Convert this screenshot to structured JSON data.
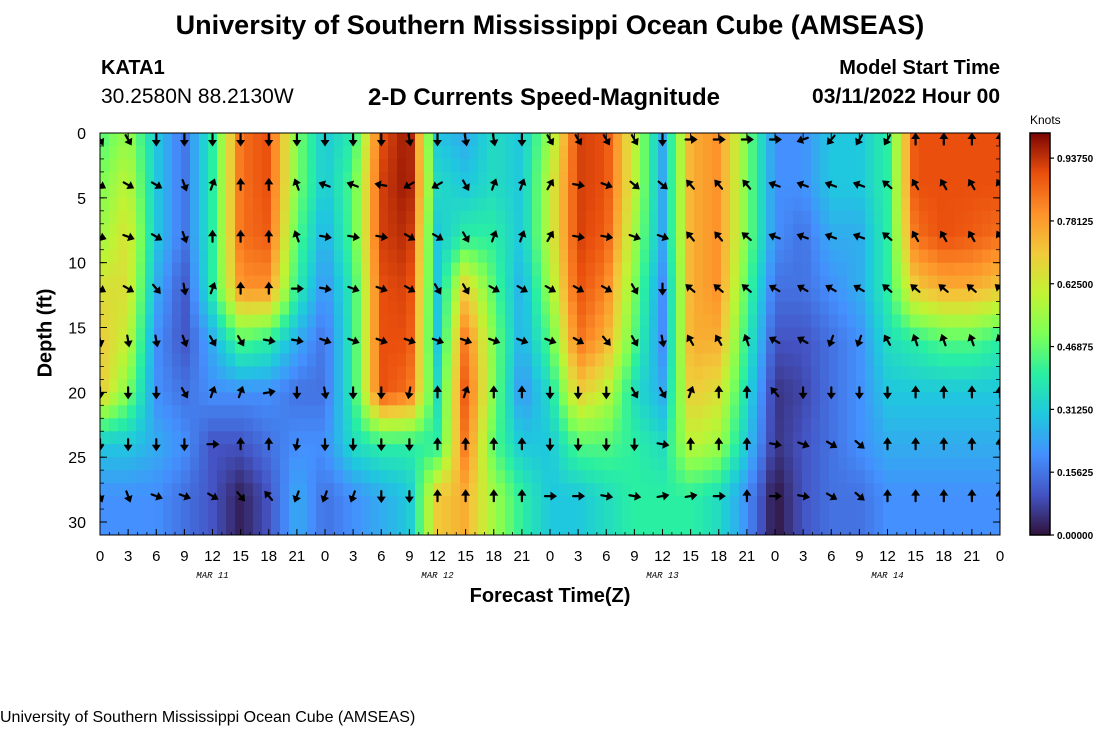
{
  "header": {
    "title": "University of Southern Mississippi Ocean Cube (AMSEAS)",
    "station_name": "KATA1",
    "station_coords": "30.2580N  88.2130W",
    "plot_title": "2-D Currents Speed-Magnitude",
    "model_start_label": "Model Start Time",
    "model_start_value": "03/11/2022 Hour 00"
  },
  "footer": {
    "title_repeat": "University of Southern Mississippi Ocean Cube (AMSEAS)"
  },
  "chart_data": {
    "type": "heatmap",
    "title": "2-D Currents Speed-Magnitude",
    "xlabel": "Forecast Time(Z)",
    "ylabel": "Depth (ft)",
    "x_ticks": [
      "0",
      "3",
      "6",
      "9",
      "12",
      "15",
      "18",
      "21",
      "0",
      "3",
      "6",
      "9",
      "12",
      "15",
      "18",
      "21",
      "0",
      "3",
      "6",
      "9",
      "12",
      "15",
      "18",
      "21",
      "0",
      "3",
      "6",
      "9",
      "12",
      "15",
      "18",
      "21",
      "0"
    ],
    "x_range_hours": [
      0,
      96
    ],
    "date_labels": [
      {
        "label": "MAR 11",
        "hour": 12
      },
      {
        "label": "MAR 12",
        "hour": 36
      },
      {
        "label": "MAR 13",
        "hour": 60
      },
      {
        "label": "MAR 14",
        "hour": 84
      }
    ],
    "y_ticks": [
      "0",
      "5",
      "10",
      "15",
      "20",
      "25",
      "30"
    ],
    "y_range_ft": [
      0,
      31
    ],
    "colorbar": {
      "unit": "Knots",
      "range": [
        0,
        1
      ],
      "ticks": [
        {
          "value": 0.0,
          "label": "0.00000"
        },
        {
          "value": 0.15625,
          "label": "0.15625"
        },
        {
          "value": 0.3125,
          "label": "0.31250"
        },
        {
          "value": 0.46875,
          "label": "0.46875"
        },
        {
          "value": 0.625,
          "label": "0.62500"
        },
        {
          "value": 0.78125,
          "label": "0.78125"
        },
        {
          "value": 0.9375,
          "label": "0.93750"
        }
      ]
    },
    "grid_depths_ft": [
      0.5,
      4,
      8,
      12,
      16,
      20,
      24,
      28
    ],
    "grid_hours": [
      0,
      3,
      6,
      9,
      12,
      15,
      18,
      21,
      24,
      27,
      30,
      33,
      36,
      39,
      42,
      45,
      48,
      51,
      54,
      57,
      60,
      63,
      66,
      69,
      72,
      75,
      78,
      81,
      84,
      87,
      90,
      93,
      96
    ],
    "speed_knots": [
      [
        0.45,
        0.55,
        0.3,
        0.15,
        0.4,
        0.85,
        0.9,
        0.5,
        0.3,
        0.4,
        0.9,
        0.98,
        0.3,
        0.25,
        0.35,
        0.3,
        0.55,
        0.92,
        0.9,
        0.6,
        0.25,
        0.75,
        0.8,
        0.5,
        0.2,
        0.2,
        0.3,
        0.3,
        0.4,
        0.9,
        0.9,
        0.9,
        0.9
      ],
      [
        0.5,
        0.6,
        0.3,
        0.15,
        0.4,
        0.85,
        0.9,
        0.5,
        0.3,
        0.45,
        0.92,
        0.98,
        0.35,
        0.3,
        0.35,
        0.3,
        0.6,
        0.92,
        0.9,
        0.6,
        0.25,
        0.75,
        0.8,
        0.5,
        0.2,
        0.2,
        0.3,
        0.3,
        0.4,
        0.9,
        0.9,
        0.9,
        0.9
      ],
      [
        0.55,
        0.65,
        0.3,
        0.15,
        0.4,
        0.85,
        0.88,
        0.45,
        0.25,
        0.45,
        0.92,
        0.95,
        0.3,
        0.4,
        0.4,
        0.3,
        0.6,
        0.92,
        0.88,
        0.55,
        0.25,
        0.75,
        0.8,
        0.5,
        0.2,
        0.15,
        0.25,
        0.25,
        0.4,
        0.85,
        0.9,
        0.88,
        0.85
      ],
      [
        0.65,
        0.65,
        0.25,
        0.1,
        0.4,
        0.8,
        0.8,
        0.4,
        0.2,
        0.4,
        0.9,
        0.92,
        0.3,
        0.7,
        0.45,
        0.25,
        0.55,
        0.9,
        0.82,
        0.5,
        0.2,
        0.75,
        0.8,
        0.45,
        0.15,
        0.15,
        0.2,
        0.25,
        0.4,
        0.7,
        0.75,
        0.75,
        0.7
      ],
      [
        0.7,
        0.6,
        0.2,
        0.1,
        0.25,
        0.45,
        0.4,
        0.25,
        0.15,
        0.4,
        0.9,
        0.9,
        0.3,
        0.85,
        0.5,
        0.25,
        0.45,
        0.85,
        0.75,
        0.45,
        0.2,
        0.75,
        0.75,
        0.4,
        0.1,
        0.1,
        0.15,
        0.2,
        0.35,
        0.4,
        0.45,
        0.45,
        0.4
      ],
      [
        0.7,
        0.5,
        0.2,
        0.15,
        0.2,
        0.2,
        0.2,
        0.15,
        0.15,
        0.4,
        0.9,
        0.85,
        0.35,
        0.9,
        0.5,
        0.2,
        0.35,
        0.7,
        0.6,
        0.35,
        0.25,
        0.7,
        0.65,
        0.35,
        0.05,
        0.08,
        0.15,
        0.2,
        0.3,
        0.3,
        0.3,
        0.3,
        0.3
      ],
      [
        0.3,
        0.3,
        0.25,
        0.2,
        0.1,
        0.1,
        0.15,
        0.2,
        0.2,
        0.35,
        0.4,
        0.4,
        0.4,
        0.85,
        0.45,
        0.3,
        0.3,
        0.45,
        0.45,
        0.4,
        0.35,
        0.6,
        0.55,
        0.3,
        0.05,
        0.1,
        0.15,
        0.2,
        0.25,
        0.25,
        0.25,
        0.25,
        0.25
      ],
      [
        0.2,
        0.2,
        0.2,
        0.15,
        0.1,
        0.02,
        0.1,
        0.25,
        0.15,
        0.2,
        0.25,
        0.3,
        0.7,
        0.75,
        0.55,
        0.4,
        0.3,
        0.3,
        0.35,
        0.4,
        0.4,
        0.4,
        0.35,
        0.2,
        0.0,
        0.1,
        0.15,
        0.15,
        0.2,
        0.2,
        0.2,
        0.2,
        0.2
      ]
    ],
    "direction_deg": [
      [
        150,
        150,
        180,
        180,
        180,
        180,
        180,
        180,
        180,
        180,
        180,
        170,
        180,
        170,
        170,
        180,
        150,
        150,
        150,
        150,
        180,
        90,
        90,
        90,
        90,
        250,
        220,
        210,
        210,
        0,
        0,
        0,
        0
      ],
      [
        120,
        120,
        120,
        160,
        20,
        0,
        0,
        340,
        290,
        290,
        280,
        240,
        240,
        150,
        20,
        20,
        30,
        100,
        110,
        130,
        130,
        320,
        320,
        320,
        290,
        290,
        290,
        290,
        310,
        330,
        330,
        330,
        330
      ],
      [
        110,
        110,
        120,
        160,
        0,
        0,
        0,
        340,
        100,
        100,
        100,
        120,
        120,
        150,
        20,
        20,
        30,
        100,
        100,
        110,
        110,
        320,
        320,
        310,
        290,
        290,
        290,
        290,
        310,
        330,
        330,
        330,
        330
      ],
      [
        120,
        120,
        140,
        170,
        20,
        0,
        0,
        90,
        100,
        110,
        110,
        120,
        150,
        150,
        120,
        120,
        120,
        120,
        120,
        150,
        180,
        310,
        310,
        310,
        300,
        300,
        300,
        300,
        310,
        310,
        310,
        310,
        310
      ],
      [
        170,
        170,
        170,
        160,
        150,
        150,
        100,
        100,
        110,
        110,
        110,
        110,
        110,
        110,
        110,
        110,
        110,
        120,
        140,
        150,
        170,
        330,
        330,
        340,
        300,
        300,
        200,
        200,
        330,
        340,
        340,
        340,
        340
      ],
      [
        180,
        180,
        180,
        150,
        20,
        20,
        80,
        180,
        170,
        180,
        180,
        190,
        0,
        20,
        0,
        0,
        180,
        180,
        180,
        150,
        150,
        20,
        0,
        0,
        320,
        180,
        180,
        180,
        180,
        0,
        0,
        0,
        0
      ],
      [
        180,
        180,
        180,
        180,
        90,
        0,
        0,
        190,
        180,
        180,
        180,
        180,
        0,
        0,
        0,
        0,
        180,
        180,
        180,
        180,
        100,
        0,
        0,
        0,
        100,
        110,
        120,
        130,
        0,
        0,
        0,
        0,
        0
      ],
      [
        160,
        160,
        110,
        110,
        120,
        140,
        320,
        200,
        200,
        200,
        180,
        180,
        0,
        0,
        0,
        0,
        90,
        90,
        100,
        100,
        80,
        80,
        90,
        0,
        90,
        100,
        120,
        130,
        0,
        0,
        0,
        0,
        0
      ]
    ]
  }
}
